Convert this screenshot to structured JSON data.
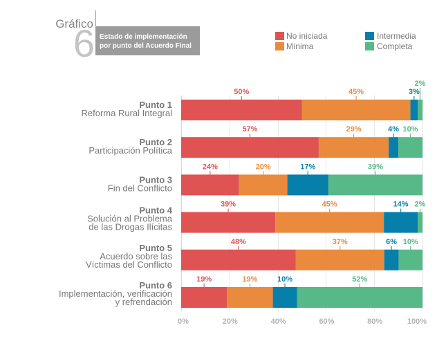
{
  "header": {
    "graphic_word": "Gráfico",
    "graphic_number": "6",
    "title_lines": [
      "Estado de implementación",
      "por punto del Acuerdo Final"
    ]
  },
  "legend": {
    "items": [
      {
        "label": "No iniciada",
        "color": "#e05353"
      },
      {
        "label": "Mínima",
        "color": "#ea8a3d"
      },
      {
        "label": "Intermedia",
        "color": "#067fab"
      },
      {
        "label": "Completa",
        "color": "#57b987"
      }
    ]
  },
  "chart_data": {
    "type": "bar",
    "orientation": "horizontal",
    "stacked": true,
    "normalized_to_100": true,
    "title": "Estado de implementación por punto del Acuerdo Final",
    "xlabel": "",
    "ylabel": "",
    "xlim": [
      0,
      100
    ],
    "xticks": [
      0,
      20,
      40,
      60,
      80,
      100
    ],
    "xtick_labels": [
      "0%",
      "20%",
      "40%",
      "60%",
      "80%",
      "100%"
    ],
    "grid": true,
    "legend_position": "top-right",
    "categories": [
      {
        "label": "Punto 1",
        "description_lines": [
          "Reforma Rural Integral"
        ]
      },
      {
        "label": "Punto 2",
        "description_lines": [
          "Participación Política"
        ]
      },
      {
        "label": "Punto 3",
        "description_lines": [
          "Fin del Conflicto"
        ]
      },
      {
        "label": "Punto 4",
        "description_lines": [
          "Solución al Problema",
          "de las Drogas Ilícitas"
        ]
      },
      {
        "label": "Punto 5",
        "description_lines": [
          "Acuerdo sobre las",
          "Víctimas del Conflicto"
        ]
      },
      {
        "label": "Punto 6",
        "description_lines": [
          "Implementación, verificación",
          "y refrendación"
        ]
      }
    ],
    "series": [
      {
        "name": "No iniciada",
        "color": "#e05353",
        "values": [
          50,
          57,
          24,
          39,
          48,
          19
        ],
        "labels": [
          "50%",
          "57%",
          "24%",
          "39%",
          "48%",
          "19%"
        ]
      },
      {
        "name": "Mínima",
        "color": "#ea8a3d",
        "values": [
          45,
          29,
          20,
          45,
          37,
          19
        ],
        "labels": [
          "45%",
          "29%",
          "20%",
          "45%",
          "37%",
          "19%"
        ]
      },
      {
        "name": "Intermedia",
        "color": "#067fab",
        "values": [
          3,
          4,
          17,
          14,
          6,
          10
        ],
        "labels": [
          "3%",
          "4%",
          "17%",
          "14%",
          "6%",
          "10%"
        ]
      },
      {
        "name": "Completa",
        "color": "#57b987",
        "values": [
          2,
          10,
          39,
          2,
          10,
          52
        ],
        "labels": [
          "2%",
          "10%",
          "39%",
          "2%",
          "10%",
          "52%"
        ]
      }
    ]
  }
}
